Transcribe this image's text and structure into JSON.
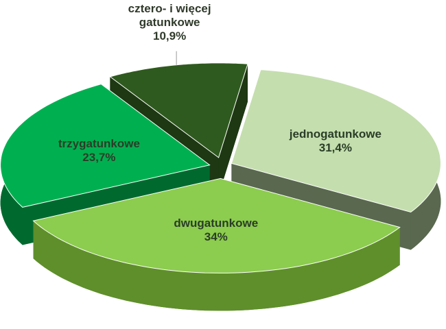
{
  "chart_data": {
    "type": "pie3d",
    "categories": [
      "jednogatunkowe",
      "dwugatunkowe",
      "trzygatunkowe",
      "cztero- i więcej gatunkowe"
    ],
    "values": [
      31.4,
      34,
      23.7,
      10.9
    ],
    "value_labels": [
      "31,4%",
      "34%",
      "23,7%",
      "10,9%"
    ],
    "colors": [
      "#c4deae",
      "#8ccc4e",
      "#00b050",
      "#2f5a1f"
    ],
    "side_colors": [
      "#59684f",
      "#5f8f2a",
      "#006a2e",
      "#1d3812"
    ]
  }
}
